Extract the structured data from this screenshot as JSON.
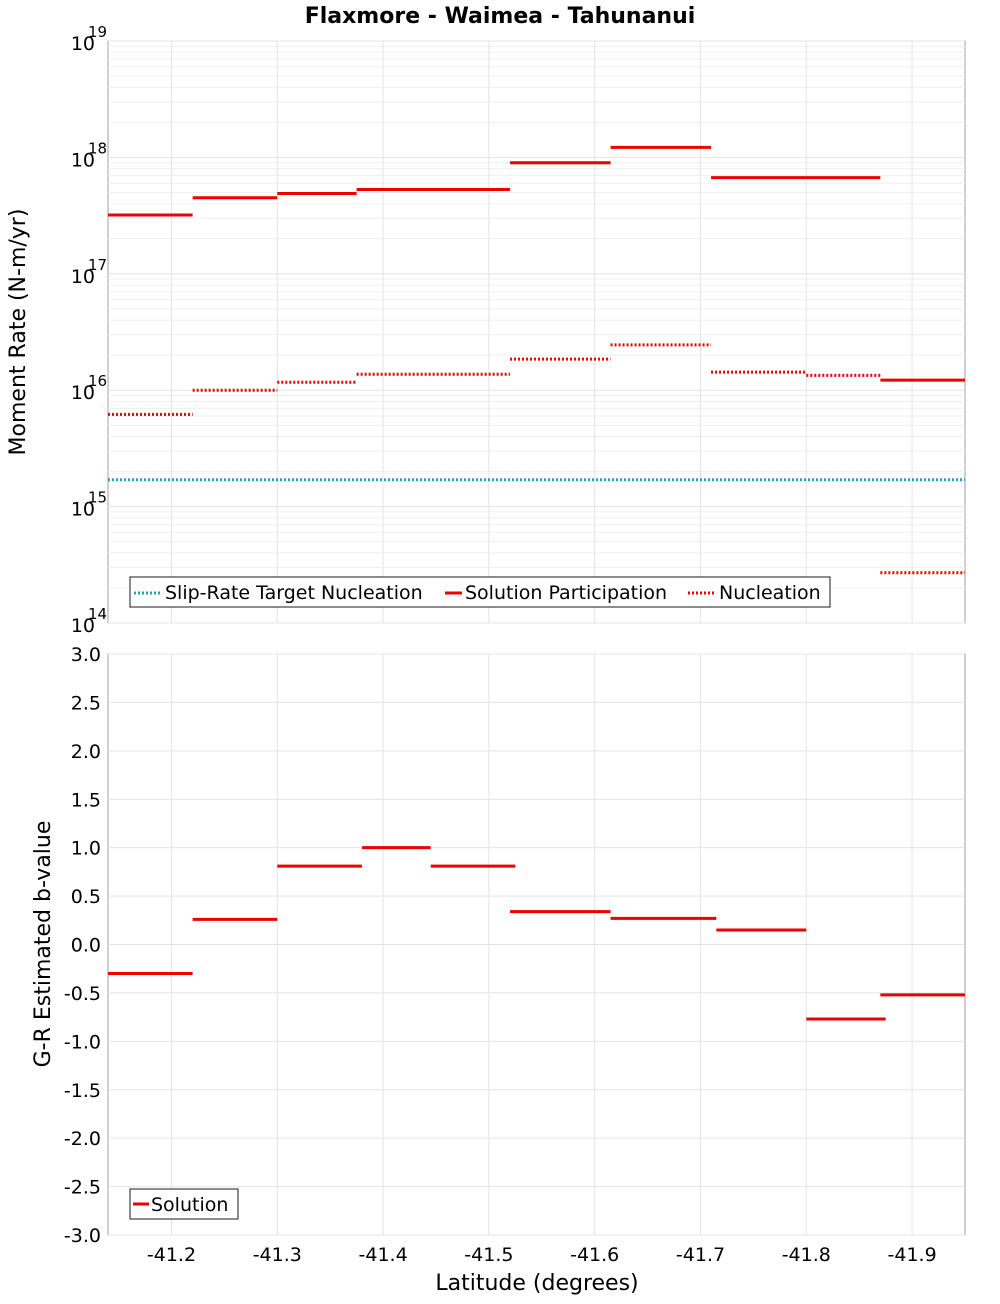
{
  "chart_data": [
    {
      "type": "line",
      "panel": "top",
      "title": "Flaxmore - Waimea - Tahunanui",
      "xlabel": "Latitude (degrees)",
      "ylabel": "Moment Rate (N-m/yr)",
      "yscale": "log",
      "ylim_exponents": [
        14,
        19
      ],
      "y_tick_base": "10",
      "y_tick_exponents": [
        "14",
        "15",
        "16",
        "17",
        "18",
        "19"
      ],
      "xlim": [
        -41.14,
        -41.95
      ],
      "x_ticks": [
        "-41.2",
        "-41.3",
        "-41.4",
        "-41.5",
        "-41.6",
        "-41.7",
        "-41.8",
        "-41.9"
      ],
      "x_tick_values": [
        -41.2,
        -41.3,
        -41.4,
        -41.5,
        -41.6,
        -41.7,
        -41.8,
        -41.9
      ],
      "grid": true,
      "legend_position": "bottom-left",
      "series": [
        {
          "name": "Slip-Rate Target Nucleation",
          "style": "dotted",
          "color": "#1aa9b2",
          "segments": [
            {
              "x0": -41.14,
              "x1": -41.95,
              "y": 1700000000000000.0
            }
          ]
        },
        {
          "name": "Solution Participation",
          "style": "solid",
          "color": "#ee0000",
          "segments": [
            {
              "x0": -41.14,
              "x1": -41.22,
              "y": 3.2e+17
            },
            {
              "x0": -41.22,
              "x1": -41.3,
              "y": 4.5e+17
            },
            {
              "x0": -41.3,
              "x1": -41.375,
              "y": 4.9e+17
            },
            {
              "x0": -41.375,
              "x1": -41.52,
              "y": 5.3e+17
            },
            {
              "x0": -41.52,
              "x1": -41.615,
              "y": 9e+17
            },
            {
              "x0": -41.615,
              "x1": -41.71,
              "y": 1.22e+18
            },
            {
              "x0": -41.71,
              "x1": -41.87,
              "y": 6.7e+17
            },
            {
              "x0": -41.87,
              "x1": -41.95,
              "y": 1.22e+16
            }
          ]
        },
        {
          "name": "Nucleation",
          "style": "dotted",
          "color": "#ee0000",
          "segments": [
            {
              "x0": -41.14,
              "x1": -41.22,
              "y": 6200000000000000.0
            },
            {
              "x0": -41.22,
              "x1": -41.3,
              "y": 1e+16
            },
            {
              "x0": -41.3,
              "x1": -41.375,
              "y": 1.17e+16
            },
            {
              "x0": -41.375,
              "x1": -41.52,
              "y": 1.37e+16
            },
            {
              "x0": -41.52,
              "x1": -41.615,
              "y": 1.85e+16
            },
            {
              "x0": -41.615,
              "x1": -41.71,
              "y": 2.45e+16
            },
            {
              "x0": -41.71,
              "x1": -41.8,
              "y": 1.43e+16
            },
            {
              "x0": -41.8,
              "x1": -41.87,
              "y": 1.34e+16
            },
            {
              "x0": -41.87,
              "x1": -41.95,
              "y": 270000000000000.0
            }
          ]
        }
      ]
    },
    {
      "type": "line",
      "panel": "bottom",
      "title": "",
      "xlabel": "Latitude (degrees)",
      "ylabel": "G-R Estimated b-value",
      "yscale": "linear",
      "ylim": [
        -3.0,
        3.0
      ],
      "y_ticks": [
        "3.0",
        "2.5",
        "2.0",
        "1.5",
        "1.0",
        "0.5",
        "0.0",
        "-0.5",
        "-1.0",
        "-1.5",
        "-2.0",
        "-2.5",
        "-3.0"
      ],
      "y_tick_values": [
        3.0,
        2.5,
        2.0,
        1.5,
        1.0,
        0.5,
        0.0,
        -0.5,
        -1.0,
        -1.5,
        -2.0,
        -2.5,
        -3.0
      ],
      "xlim": [
        -41.14,
        -41.95
      ],
      "x_ticks": [
        "-41.2",
        "-41.3",
        "-41.4",
        "-41.5",
        "-41.6",
        "-41.7",
        "-41.8",
        "-41.9"
      ],
      "x_tick_values": [
        -41.2,
        -41.3,
        -41.4,
        -41.5,
        -41.6,
        -41.7,
        -41.8,
        -41.9
      ],
      "grid": true,
      "legend_position": "bottom-left",
      "series": [
        {
          "name": "Solution",
          "style": "solid",
          "color": "#ee0000",
          "segments": [
            {
              "x0": -41.14,
              "x1": -41.22,
              "y": -0.3
            },
            {
              "x0": -41.22,
              "x1": -41.3,
              "y": 0.26
            },
            {
              "x0": -41.3,
              "x1": -41.38,
              "y": 0.81
            },
            {
              "x0": -41.38,
              "x1": -41.445,
              "y": 1.0
            },
            {
              "x0": -41.445,
              "x1": -41.525,
              "y": 0.81
            },
            {
              "x0": -41.52,
              "x1": -41.615,
              "y": 0.34
            },
            {
              "x0": -41.615,
              "x1": -41.715,
              "y": 0.27
            },
            {
              "x0": -41.715,
              "x1": -41.8,
              "y": 0.15
            },
            {
              "x0": -41.8,
              "x1": -41.875,
              "y": -0.77
            },
            {
              "x0": -41.87,
              "x1": -41.95,
              "y": -0.52
            }
          ]
        }
      ]
    }
  ]
}
